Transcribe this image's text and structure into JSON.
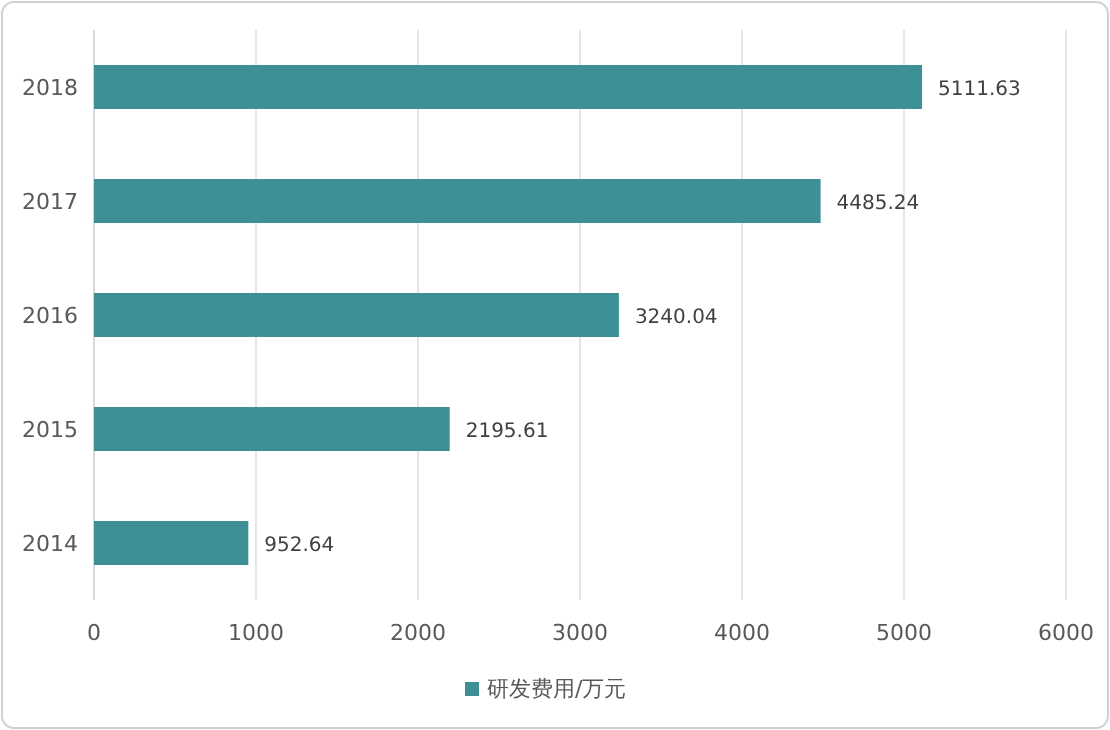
{
  "chart_data": {
    "type": "bar",
    "orientation": "horizontal",
    "categories": [
      "2018",
      "2017",
      "2016",
      "2015",
      "2014"
    ],
    "series": [
      {
        "name": "研发费用/万元",
        "color": "#3d9196",
        "values": [
          5111.63,
          4485.24,
          3240.04,
          2195.61,
          952.64
        ]
      }
    ],
    "xlim": [
      0,
      6000
    ],
    "xticks": [
      0,
      1000,
      2000,
      3000,
      4000,
      5000,
      6000
    ],
    "grid": "x",
    "legend": "bottom",
    "data_labels": true
  }
}
